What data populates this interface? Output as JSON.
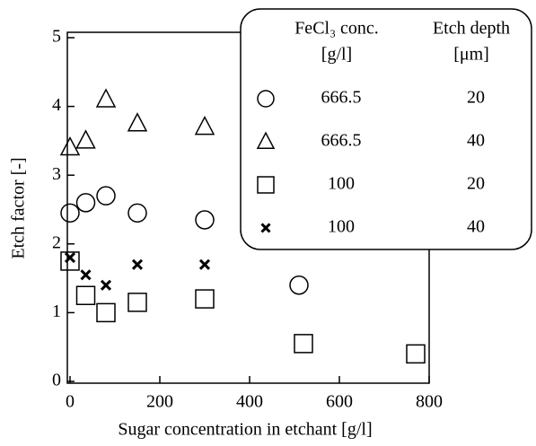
{
  "chart_data": {
    "type": "scatter",
    "x_label": "Sugar concentration in etchant  [g/l]",
    "y_label": "Etch factor  [-]",
    "xlim": [
      0,
      800
    ],
    "xticks": [
      0,
      200,
      400,
      600,
      800
    ],
    "ylim": [
      0,
      5
    ],
    "yticks": [
      0,
      1,
      2,
      3,
      4,
      5
    ],
    "legend": {
      "headers": [
        "FeCl₃ conc.",
        "Etch depth"
      ],
      "units": [
        "[g/l]",
        "[μm]"
      ]
    },
    "series": [
      {
        "name": "666.5",
        "depth": "20",
        "marker": "circle",
        "color": "#000",
        "x": [
          0,
          35,
          80,
          150,
          300,
          510
        ],
        "values": [
          2.45,
          2.6,
          2.7,
          2.45,
          2.35,
          1.4
        ]
      },
      {
        "name": "666.5",
        "depth": "40",
        "marker": "triangle",
        "color": "#000",
        "x": [
          0,
          35,
          80,
          150,
          300
        ],
        "values": [
          3.4,
          3.5,
          4.1,
          3.75,
          3.7
        ]
      },
      {
        "name": "100",
        "depth": "20",
        "marker": "square",
        "color": "#000",
        "x": [
          0,
          35,
          80,
          150,
          300,
          520,
          770
        ],
        "values": [
          1.75,
          1.25,
          1.0,
          1.15,
          1.2,
          0.55,
          0.4
        ]
      },
      {
        "name": "100",
        "depth": "40",
        "marker": "cross",
        "color": "#000",
        "x": [
          0,
          35,
          80,
          150,
          300
        ],
        "values": [
          1.8,
          1.55,
          1.4,
          1.7,
          1.7
        ]
      }
    ]
  }
}
